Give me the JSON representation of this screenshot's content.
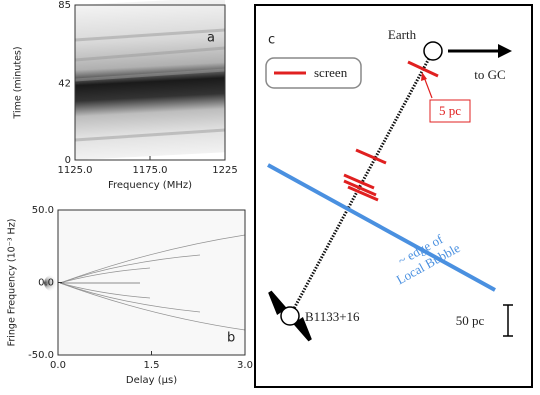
{
  "chart_data": [
    {
      "type": "image",
      "panel_label": "a",
      "x_label": "Frequency (MHz)",
      "y_label": "Time (minutes)",
      "xlim": [
        1125,
        1225
      ],
      "xticks": [
        {
          "value": 1125,
          "label": "1125.0"
        },
        {
          "value": 1175,
          "label": "1175.0"
        },
        1225
      ],
      "ylim": [
        0,
        85
      ],
      "yticks": [
        0,
        42,
        85
      ]
    },
    {
      "type": "image",
      "panel_label": "b",
      "x_label": "Delay (μs)",
      "y_label": "Fringe Frequency (10⁻³ Hz)",
      "xlim": [
        0,
        3
      ],
      "xticks": [
        {
          "value": 0,
          "label": "0.0"
        },
        {
          "value": 1.5,
          "label": "1.5"
        },
        {
          "value": 3,
          "label": "3.0"
        }
      ],
      "ylim": [
        -50,
        50
      ],
      "yticks": [
        {
          "value": -50,
          "label": "-50.0"
        },
        {
          "value": 0,
          "label": "0.0"
        },
        {
          "value": 50,
          "label": "50.0"
        }
      ]
    }
  ],
  "diagram": {
    "panel_label": "c",
    "earth": "Earth",
    "direction": "to GC",
    "legend": "screen",
    "screen_size": "5 pc",
    "bubble_label": [
      "~ edge of",
      "Local Bubble"
    ],
    "pulsar": "B1133+16",
    "scale": "50 pc"
  }
}
